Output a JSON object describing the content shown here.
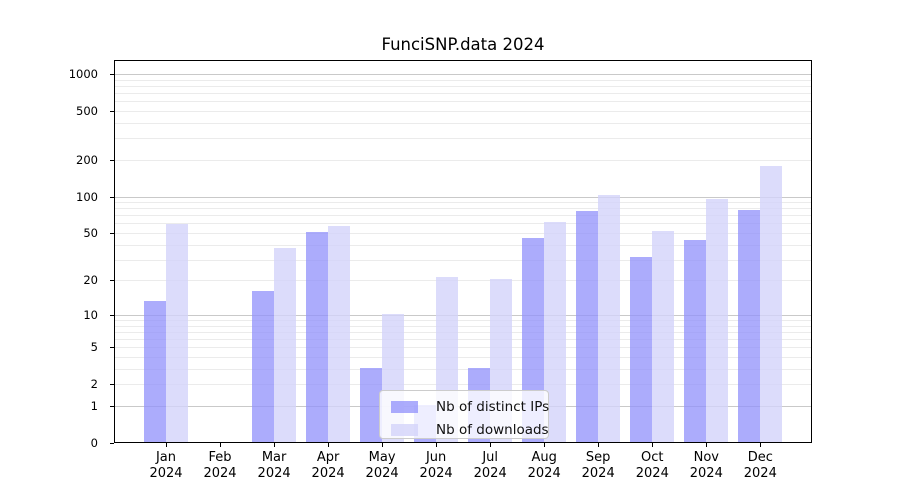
{
  "chart_data": {
    "type": "bar",
    "title": "FunciSNP.data 2024",
    "categories": [
      "Jan 2024",
      "Feb 2024",
      "Mar 2024",
      "Apr 2024",
      "May 2024",
      "Jun 2024",
      "Jul 2024",
      "Aug 2024",
      "Sep 2024",
      "Oct 2024",
      "Nov 2024",
      "Dec 2024"
    ],
    "series": [
      {
        "key": "ips",
        "name": "Nb of distinct IPs",
        "color": "rgba(144,144,251,0.75)",
        "values": [
          13,
          0,
          16,
          50,
          3,
          1,
          3,
          45,
          75,
          31,
          43,
          76
        ]
      },
      {
        "key": "downloads",
        "name": "Nb of downloads",
        "color": "rgba(211,211,250,0.8)",
        "values": [
          58,
          0,
          37,
          56,
          10,
          21,
          20,
          61,
          102,
          51,
          93,
          175
        ]
      }
    ],
    "xlabel": "",
    "ylabel": "",
    "y_scale": "log1p",
    "y_ticks": [
      0,
      1,
      2,
      5,
      10,
      20,
      50,
      100,
      200,
      500,
      1000
    ],
    "major_gridlines": [
      1,
      10,
      100,
      1000
    ],
    "minor_gridlines": [
      2,
      3,
      4,
      5,
      6,
      7,
      8,
      9,
      20,
      30,
      40,
      50,
      60,
      70,
      80,
      90,
      200,
      300,
      400,
      500,
      600,
      700,
      800,
      900
    ],
    "ylim": [
      0,
      1300
    ],
    "grid": true,
    "legend_position": "lower center inside",
    "colors": {
      "ips_bar": "#9090FB",
      "downloads_bar": "#D3D3FA",
      "grid_minor": "#EBEBEB",
      "grid_major": "#C9C9C9",
      "axis": "#000000"
    }
  }
}
